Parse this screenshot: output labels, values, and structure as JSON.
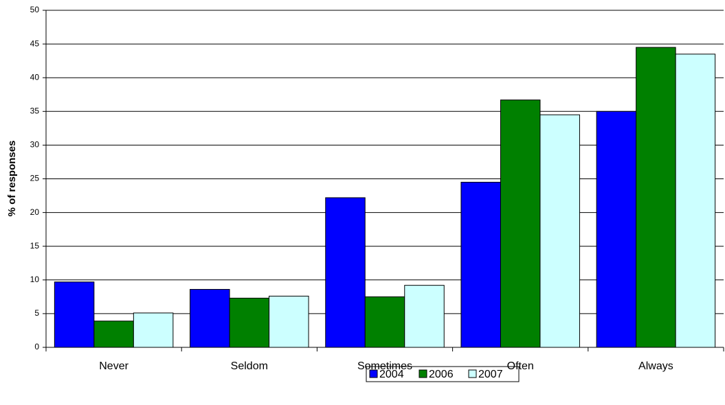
{
  "chart_data": {
    "type": "bar",
    "y_label": "% of responses",
    "categories": [
      "Never",
      "Seldom",
      "Sometimes",
      "Often",
      "Always"
    ],
    "series": [
      {
        "name": "2004",
        "color": "#0000ff",
        "values": [
          9.7,
          8.6,
          22.2,
          24.5,
          35.0
        ]
      },
      {
        "name": "2006",
        "color": "#008000",
        "values": [
          3.9,
          7.3,
          7.5,
          36.7,
          44.5
        ]
      },
      {
        "name": "2007",
        "color": "#ccffff",
        "values": [
          5.1,
          7.6,
          9.2,
          34.5,
          43.5
        ]
      }
    ],
    "ylim": [
      0,
      50
    ],
    "yticks": [
      0,
      5,
      10,
      15,
      20,
      25,
      30,
      35,
      40,
      45,
      50
    ],
    "grid": true
  }
}
